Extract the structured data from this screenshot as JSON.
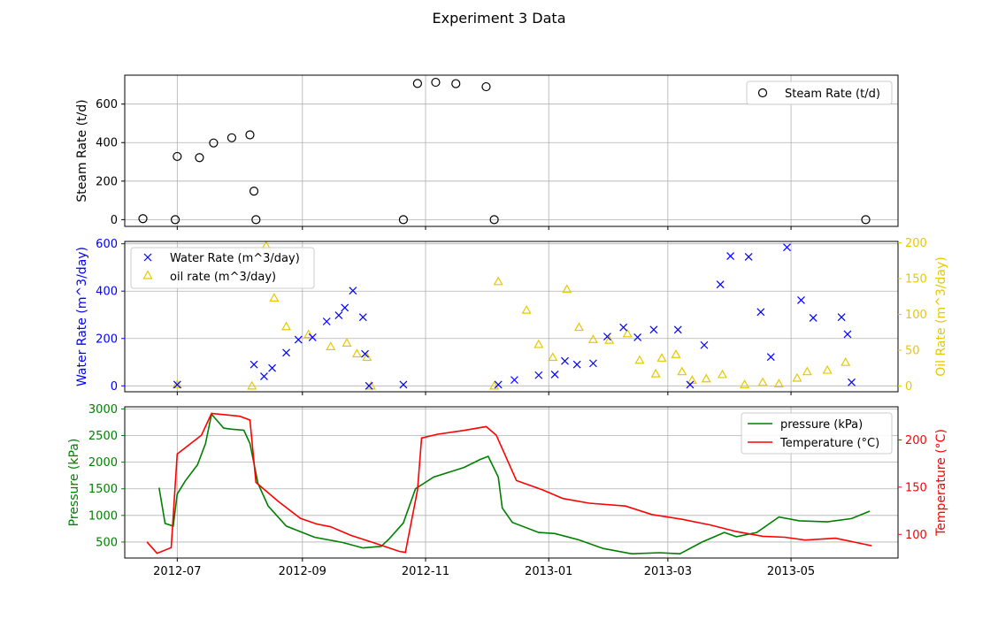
{
  "figure": {
    "title": "Experiment 3 Data",
    "x_tick_labels": [
      "2012-07",
      "2012-09",
      "2012-11",
      "2013-01",
      "2013-03",
      "2013-05"
    ]
  },
  "colors": {
    "steam": "#000000",
    "water": "#0000ff",
    "oil": "#e6c800",
    "pressure": "#008000",
    "temperature": "#ff0000",
    "grid": "#b0b0b0"
  },
  "chart_data": [
    {
      "type": "scatter",
      "panel": "top",
      "xaxis": "date",
      "xlim": [
        "2012-06-05",
        "2013-06-23"
      ],
      "ylabel": "Steam Rate (t/d)",
      "ylim": [
        -35,
        750
      ],
      "yticks": [
        0,
        200,
        400,
        600
      ],
      "grid": true,
      "legend": "upper right",
      "series": [
        {
          "name": "Steam Rate (t/d)",
          "marker": "open-circle",
          "points": [
            [
              "2012-06-14",
              5
            ],
            [
              "2012-06-30",
              0
            ],
            [
              "2012-07-01",
              328
            ],
            [
              "2012-07-12",
              322
            ],
            [
              "2012-07-19",
              398
            ],
            [
              "2012-07-28",
              425
            ],
            [
              "2012-08-06",
              440
            ],
            [
              "2012-08-08",
              148
            ],
            [
              "2012-08-09",
              0
            ],
            [
              "2012-10-21",
              0
            ],
            [
              "2012-10-28",
              707
            ],
            [
              "2012-11-06",
              713
            ],
            [
              "2012-11-16",
              706
            ],
            [
              "2012-12-01",
              690
            ],
            [
              "2012-12-05",
              0
            ],
            [
              "2013-06-07",
              0
            ]
          ]
        }
      ]
    },
    {
      "type": "scatter",
      "panel": "middle",
      "xaxis": "date",
      "xlim": [
        "2012-06-05",
        "2013-06-23"
      ],
      "ylabel": "Water Rate (m^3/day)",
      "ylim": [
        -25,
        610
      ],
      "yticks": [
        0,
        200,
        400,
        600
      ],
      "y2label": "Oil Rate (m^3/day)",
      "y2lim": [
        -8.2,
        202
      ],
      "y2ticks": [
        0,
        50,
        100,
        150,
        200
      ],
      "grid": true,
      "legend": "upper left",
      "series": [
        {
          "name": "Water Rate (m^3/day)",
          "marker": "x",
          "axis": "left",
          "points": [
            [
              "2012-07-01",
              5
            ],
            [
              "2012-08-08",
              90
            ],
            [
              "2012-08-13",
              40
            ],
            [
              "2012-08-17",
              75
            ],
            [
              "2012-08-24",
              140
            ],
            [
              "2012-08-30",
              195
            ],
            [
              "2012-09-06",
              205
            ],
            [
              "2012-09-13",
              272
            ],
            [
              "2012-09-19",
              298
            ],
            [
              "2012-09-22",
              330
            ],
            [
              "2012-09-26",
              402
            ],
            [
              "2012-10-01",
              290
            ],
            [
              "2012-10-02",
              135
            ],
            [
              "2012-10-04",
              0
            ],
            [
              "2012-10-21",
              5
            ],
            [
              "2012-12-07",
              5
            ],
            [
              "2012-12-15",
              25
            ],
            [
              "2012-12-27",
              45
            ],
            [
              "2013-01-04",
              48
            ],
            [
              "2013-01-09",
              105
            ],
            [
              "2013-01-15",
              90
            ],
            [
              "2013-01-23",
              95
            ],
            [
              "2013-01-30",
              208
            ],
            [
              "2013-02-07",
              247
            ],
            [
              "2013-02-14",
              205
            ],
            [
              "2013-02-22",
              237
            ],
            [
              "2013-03-06",
              237
            ],
            [
              "2013-03-12",
              5
            ],
            [
              "2013-03-19",
              172
            ],
            [
              "2013-03-27",
              428
            ],
            [
              "2013-04-01",
              548
            ],
            [
              "2013-04-10",
              545
            ],
            [
              "2013-04-16",
              312
            ],
            [
              "2013-04-21",
              122
            ],
            [
              "2013-04-29",
              585
            ],
            [
              "2013-05-06",
              362
            ],
            [
              "2013-05-12",
              287
            ],
            [
              "2013-05-26",
              290
            ],
            [
              "2013-05-29",
              218
            ],
            [
              "2013-05-31",
              15
            ]
          ]
        },
        {
          "name": "oil rate (m^3/day)",
          "marker": "open-triangle",
          "axis": "right",
          "points": [
            [
              "2012-07-01",
              2
            ],
            [
              "2012-08-07",
              0
            ],
            [
              "2012-08-14",
              196
            ],
            [
              "2012-08-18",
              123
            ],
            [
              "2012-08-24",
              83
            ],
            [
              "2012-09-04",
              72
            ],
            [
              "2012-09-15",
              55
            ],
            [
              "2012-09-23",
              60
            ],
            [
              "2012-09-28",
              45
            ],
            [
              "2012-10-03",
              40
            ],
            [
              "2012-10-05",
              0
            ],
            [
              "2012-12-05",
              0
            ],
            [
              "2012-12-07",
              146
            ],
            [
              "2012-12-21",
              106
            ],
            [
              "2012-12-27",
              58
            ],
            [
              "2013-01-03",
              40
            ],
            [
              "2013-01-10",
              135
            ],
            [
              "2013-01-16",
              82
            ],
            [
              "2013-01-23",
              65
            ],
            [
              "2013-01-31",
              64
            ],
            [
              "2013-02-09",
              73
            ],
            [
              "2013-02-15",
              36
            ],
            [
              "2013-02-23",
              17
            ],
            [
              "2013-02-26",
              39
            ],
            [
              "2013-03-05",
              44
            ],
            [
              "2013-03-08",
              20
            ],
            [
              "2013-03-13",
              8
            ],
            [
              "2013-03-20",
              10
            ],
            [
              "2013-03-28",
              16
            ],
            [
              "2013-04-08",
              2
            ],
            [
              "2013-04-17",
              5
            ],
            [
              "2013-04-25",
              3
            ],
            [
              "2013-05-04",
              11
            ],
            [
              "2013-05-09",
              20
            ],
            [
              "2013-05-19",
              22
            ],
            [
              "2013-05-28",
              33
            ]
          ]
        }
      ]
    },
    {
      "type": "line",
      "panel": "bottom",
      "xaxis": "date",
      "xlim": [
        "2012-06-05",
        "2013-06-23"
      ],
      "ylabel": "Pressure (kPa)",
      "ylim": [
        200,
        3040
      ],
      "yticks": [
        500,
        1000,
        1500,
        2000,
        2500,
        3000
      ],
      "y2label": "Temperature (°C)",
      "y2lim": [
        75,
        235
      ],
      "y2ticks": [
        100,
        150,
        200
      ],
      "grid": true,
      "legend": "upper right",
      "series": [
        {
          "name": "pressure (kPa)",
          "axis": "left",
          "points": [
            [
              "2012-06-22",
              1520
            ],
            [
              "2012-06-25",
              850
            ],
            [
              "2012-06-29",
              800
            ],
            [
              "2012-07-01",
              1400
            ],
            [
              "2012-07-05",
              1650
            ],
            [
              "2012-07-11",
              1950
            ],
            [
              "2012-07-15",
              2350
            ],
            [
              "2012-07-18",
              2900
            ],
            [
              "2012-07-24",
              2640
            ],
            [
              "2012-07-28",
              2620
            ],
            [
              "2012-08-03",
              2600
            ],
            [
              "2012-08-06",
              2350
            ],
            [
              "2012-08-10",
              1600
            ],
            [
              "2012-08-15",
              1180
            ],
            [
              "2012-08-24",
              800
            ],
            [
              "2012-09-07",
              590
            ],
            [
              "2012-09-21",
              490
            ],
            [
              "2012-10-01",
              390
            ],
            [
              "2012-10-10",
              420
            ],
            [
              "2012-10-14",
              560
            ],
            [
              "2012-10-21",
              860
            ],
            [
              "2012-10-27",
              1500
            ],
            [
              "2012-11-05",
              1720
            ],
            [
              "2012-11-20",
              1900
            ],
            [
              "2012-11-28",
              2050
            ],
            [
              "2012-12-02",
              2110
            ],
            [
              "2012-12-07",
              1720
            ],
            [
              "2012-12-09",
              1140
            ],
            [
              "2012-12-14",
              870
            ],
            [
              "2012-12-27",
              680
            ],
            [
              "2013-01-04",
              660
            ],
            [
              "2013-01-16",
              540
            ],
            [
              "2013-01-28",
              380
            ],
            [
              "2013-02-11",
              280
            ],
            [
              "2013-02-25",
              300
            ],
            [
              "2013-03-07",
              280
            ],
            [
              "2013-03-18",
              500
            ],
            [
              "2013-03-29",
              680
            ],
            [
              "2013-04-04",
              600
            ],
            [
              "2013-04-14",
              680
            ],
            [
              "2013-04-25",
              970
            ],
            [
              "2013-05-05",
              900
            ],
            [
              "2013-05-19",
              880
            ],
            [
              "2013-05-31",
              940
            ],
            [
              "2013-06-09",
              1080
            ]
          ]
        },
        {
          "name": "Temperature (°C)",
          "axis": "right",
          "points": [
            [
              "2012-06-16",
              92
            ],
            [
              "2012-06-21",
              80
            ],
            [
              "2012-06-28",
              86
            ],
            [
              "2012-07-01",
              185
            ],
            [
              "2012-07-13",
              205
            ],
            [
              "2012-07-18",
              228
            ],
            [
              "2012-08-01",
              225
            ],
            [
              "2012-08-06",
              221
            ],
            [
              "2012-08-09",
              155
            ],
            [
              "2012-08-20",
              135
            ],
            [
              "2012-08-31",
              117
            ],
            [
              "2012-09-08",
              111
            ],
            [
              "2012-09-15",
              108
            ],
            [
              "2012-09-25",
              99
            ],
            [
              "2012-10-08",
              90
            ],
            [
              "2012-10-19",
              82
            ],
            [
              "2012-10-22",
              81
            ],
            [
              "2012-10-28",
              147
            ],
            [
              "2012-10-30",
              202
            ],
            [
              "2012-11-07",
              206
            ],
            [
              "2012-11-20",
              210
            ],
            [
              "2012-12-01",
              214
            ],
            [
              "2012-12-06",
              205
            ],
            [
              "2012-12-16",
              157
            ],
            [
              "2012-12-29",
              147
            ],
            [
              "2013-01-08",
              138
            ],
            [
              "2013-01-21",
              133
            ],
            [
              "2013-02-08",
              130
            ],
            [
              "2013-02-21",
              121
            ],
            [
              "2013-03-08",
              116
            ],
            [
              "2013-03-22",
              110
            ],
            [
              "2013-04-04",
              103
            ],
            [
              "2013-04-17",
              98
            ],
            [
              "2013-04-28",
              97
            ],
            [
              "2013-05-08",
              94
            ],
            [
              "2013-05-23",
              96
            ],
            [
              "2013-06-10",
              88
            ]
          ]
        }
      ]
    }
  ]
}
